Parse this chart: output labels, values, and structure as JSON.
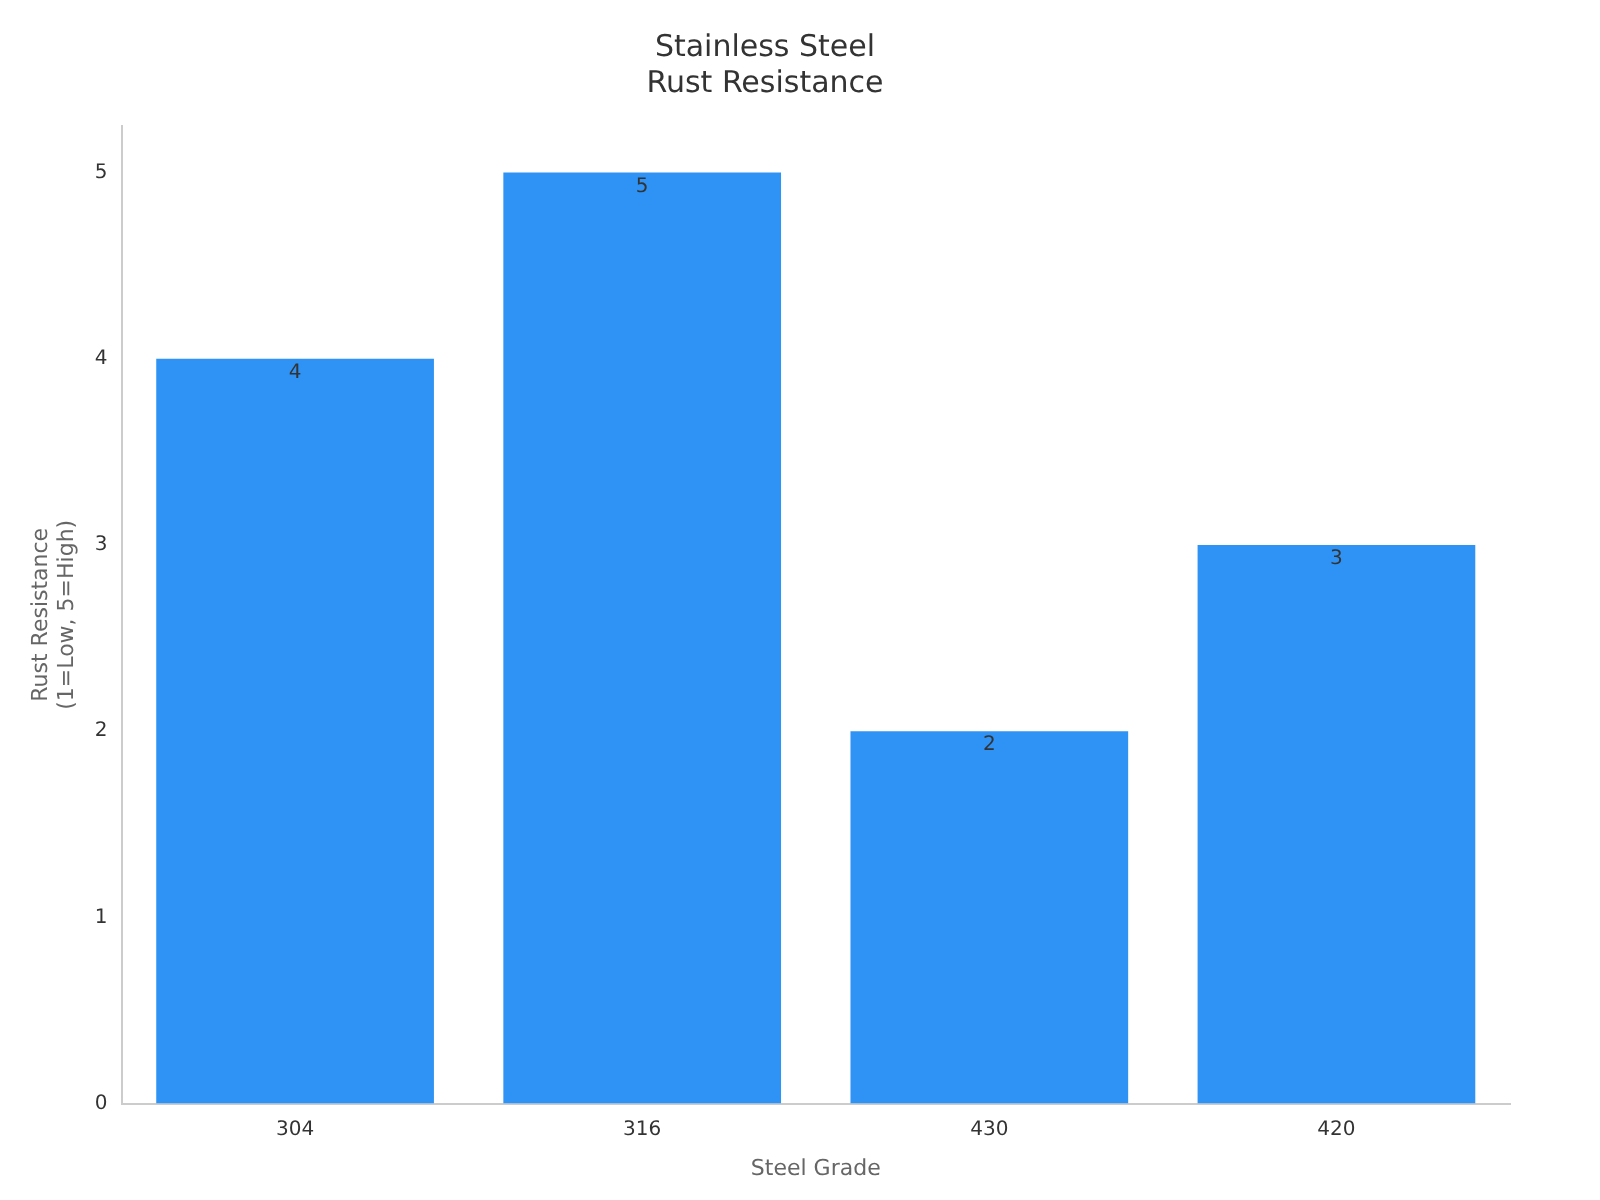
{
  "chart_data": {
    "type": "bar",
    "title": "Stainless Steel\nRust Resistance",
    "xlabel": "Steel Grade",
    "ylabel": "Rust Resistance\n(1=Low, 5=High)",
    "categories": [
      "304",
      "316",
      "430",
      "420"
    ],
    "values": [
      4,
      5,
      2,
      3
    ],
    "color": "#2e93f5",
    "ylim": [
      0,
      5.25
    ],
    "yticks": [
      0,
      1,
      2,
      3,
      4,
      5
    ],
    "grid": false,
    "legend": false,
    "data_labels": true
  }
}
